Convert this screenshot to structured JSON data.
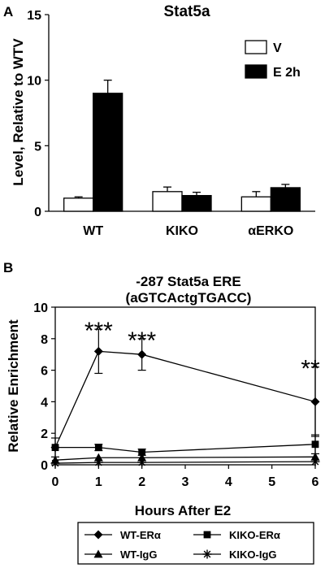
{
  "chart_data": [
    {
      "panel": "A",
      "type": "bar",
      "title": "Stat5a",
      "ylabel": "Level, Relative to  WTV",
      "ylim": [
        0,
        15
      ],
      "yticks": [
        "0",
        "5",
        "10",
        "15"
      ],
      "categories": [
        "WT",
        "KIKO",
        "αERKO"
      ],
      "series": [
        {
          "name": "V",
          "color": "#ffffff",
          "values": [
            1.0,
            1.5,
            1.1
          ],
          "errors": [
            0.1,
            0.35,
            0.4
          ]
        },
        {
          "name": "E 2h",
          "color": "#000000",
          "values": [
            9.0,
            1.2,
            1.8
          ],
          "errors": [
            1.0,
            0.25,
            0.25
          ]
        }
      ],
      "legend_position": "top-right"
    },
    {
      "panel": "B",
      "type": "line",
      "title": [
        "-287 Stat5a ERE",
        "(aGTCActgTGACC)"
      ],
      "xlabel": "Hours After E2",
      "ylabel": "Relative Enrichment",
      "x": [
        0,
        1,
        2,
        6
      ],
      "xlim": [
        0,
        6
      ],
      "xticks": [
        "0",
        "1",
        "2",
        "3",
        "4",
        "5",
        "6"
      ],
      "ylim": [
        0,
        10
      ],
      "yticks": [
        "0",
        "2",
        "4",
        "6",
        "8",
        "10"
      ],
      "series": [
        {
          "name": "WT-ERα",
          "marker": "diamond",
          "values": [
            1.1,
            7.2,
            7.0,
            4.0
          ],
          "errors": [
            0.6,
            1.4,
            1.0,
            2.2
          ]
        },
        {
          "name": "KIKO-ERα",
          "marker": "square",
          "values": [
            1.1,
            1.1,
            0.8,
            1.3
          ],
          "errors": [
            0,
            0.2,
            0.2,
            0.6
          ]
        },
        {
          "name": "WT-IgG",
          "marker": "triangle",
          "values": [
            0.3,
            0.45,
            0.45,
            0.5
          ],
          "errors": [
            0,
            0,
            0,
            0
          ]
        },
        {
          "name": "KIKO-IgG",
          "marker": "star",
          "values": [
            0.1,
            0.15,
            0.15,
            0.2
          ],
          "errors": [
            0,
            0,
            0,
            0
          ]
        }
      ],
      "annotations": [
        {
          "x": 1,
          "text": "***"
        },
        {
          "x": 2,
          "text": "***"
        },
        {
          "x": 6,
          "text": "**"
        }
      ],
      "legend_position": "bottom"
    }
  ]
}
